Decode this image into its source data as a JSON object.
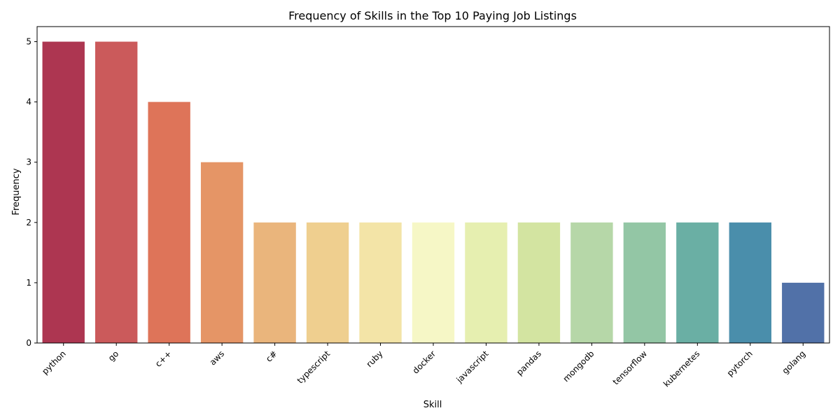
{
  "chart_data": {
    "type": "bar",
    "title": "Frequency of Skills in the Top 10 Paying Job Listings",
    "xlabel": "Skill",
    "ylabel": "Frequency",
    "categories": [
      "python",
      "go",
      "c++",
      "aws",
      "c#",
      "typescript",
      "ruby",
      "docker",
      "javascript",
      "pandas",
      "mongodb",
      "tensorflow",
      "kubernetes",
      "pytorch",
      "golang"
    ],
    "values": [
      5,
      5,
      4,
      3,
      2,
      2,
      2,
      2,
      2,
      2,
      2,
      2,
      2,
      2,
      1
    ],
    "colors": [
      "#ad3651",
      "#cb5a5b",
      "#de7459",
      "#e59566",
      "#eab57c",
      "#efcf8f",
      "#f3e4a7",
      "#f6f7c6",
      "#e6efb0",
      "#d3e4a1",
      "#b6d7a8",
      "#93c6a5",
      "#6aafa4",
      "#4a8eab",
      "#5171a8"
    ],
    "yticks": [
      0,
      1,
      2,
      3,
      4,
      5
    ],
    "ylim": [
      0,
      5.25
    ],
    "grid": false,
    "legend": "none"
  }
}
